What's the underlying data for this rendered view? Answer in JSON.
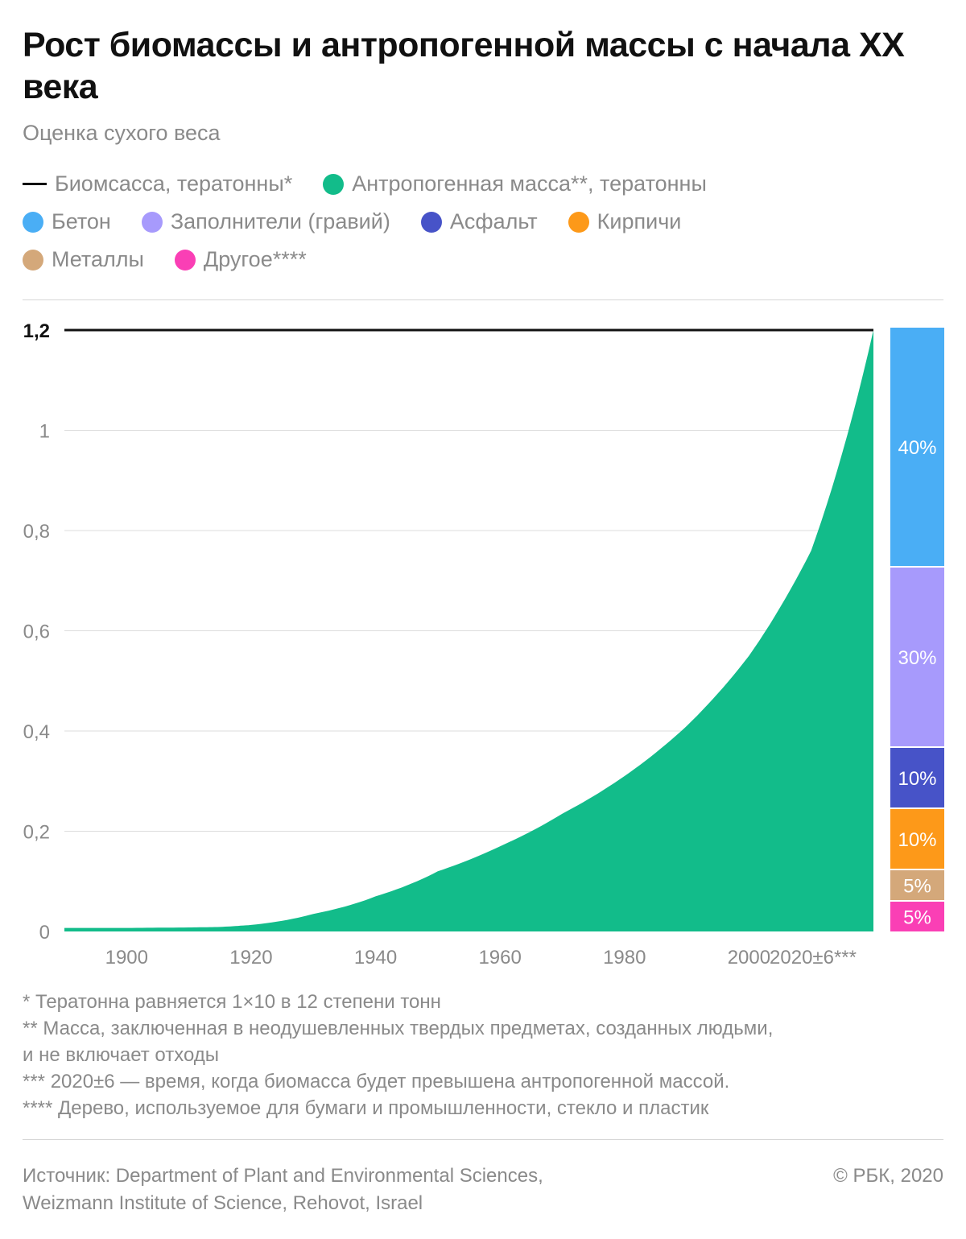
{
  "title": "Рост биомассы и антропогенной массы с начала XX века",
  "subtitle": "Оценка сухого веса",
  "legend": {
    "biomass": "Биомсасса, тератонны*",
    "anthropogenic": "Антропогенная масса**, тератонны",
    "concrete": "Бетон",
    "aggregates": "Заполнители (гравий)",
    "asphalt": "Асфальт",
    "bricks": "Кирпичи",
    "metals": "Металлы",
    "other": "Другое****"
  },
  "colors": {
    "biomass": "#111111",
    "anthropogenic": "#12bc8a",
    "concrete": "#4aaef5",
    "aggregates": "#a79afc",
    "asphalt": "#4753c8",
    "bricks": "#fd9919",
    "metals": "#d4a87a",
    "other": "#fa3fb5"
  },
  "chart_data": {
    "type": "area",
    "x": [
      1900,
      1910,
      1915,
      1920,
      1930,
      1940,
      1950,
      1960,
      1970,
      1980,
      1990,
      2000,
      2010,
      2020
    ],
    "series": [
      {
        "name": "Биомсасса, тератонны*",
        "type": "line",
        "values": [
          1.2,
          1.2,
          1.2,
          1.2,
          1.2,
          1.2,
          1.2,
          1.2,
          1.2,
          1.2,
          1.2,
          1.2,
          1.2,
          1.2
        ]
      },
      {
        "name": "Антропогенная масса**, тератонны",
        "type": "area",
        "values": [
          0.007,
          0.008,
          0.009,
          0.013,
          0.035,
          0.07,
          0.12,
          0.17,
          0.235,
          0.31,
          0.41,
          0.55,
          0.76,
          1.2
        ]
      }
    ],
    "x_ticks": [
      "1900",
      "1920",
      "1940",
      "1960",
      "1980",
      "2000",
      "2020±6***"
    ],
    "x_tick_values": [
      1900,
      1920,
      1940,
      1960,
      1980,
      2000,
      2020
    ],
    "y_ticks": [
      "0",
      "0,2",
      "0,4",
      "0,6",
      "0,8",
      "1",
      "1,2"
    ],
    "y_tick_values": [
      0,
      0.2,
      0.4,
      0.6,
      0.8,
      1,
      1.2
    ],
    "ylim": [
      0,
      1.2
    ],
    "xlim": [
      1890,
      2020
    ],
    "grid": true,
    "composition": [
      {
        "name": "Бетон",
        "share": 40,
        "label": "40%"
      },
      {
        "name": "Заполнители (гравий)",
        "share": 30,
        "label": "30%"
      },
      {
        "name": "Асфальт",
        "share": 10,
        "label": "10%"
      },
      {
        "name": "Кирпичи",
        "share": 10,
        "label": "10%"
      },
      {
        "name": "Металлы",
        "share": 5,
        "label": "5%"
      },
      {
        "name": "Другое****",
        "share": 5,
        "label": "5%"
      }
    ]
  },
  "footnotes": [
    "* Тератонна равняется 1×10 в 12 степени тонн",
    "** Масса, заключенная в неодушевленных твердых предметах, созданных людьми,",
    "и не включает отходы",
    "*** 2020±6 — время, когда биомасса будет превышена антропогенной массой.",
    "**** Дерево, используемое для бумаги и промышленности, стекло и пластик"
  ],
  "source_line1": "Источник: Department of Plant and Environmental Sciences,",
  "source_line2": "Weizmann Institute of Science, Rehovot, Israel",
  "copyright": "© РБК, 2020"
}
